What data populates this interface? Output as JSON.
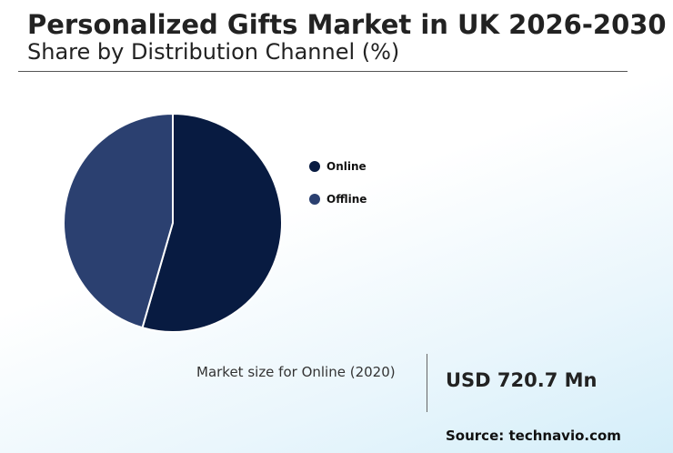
{
  "header": {
    "title": "Personalized Gifts Market in UK 2026-2030",
    "subtitle": "Share by Distribution Channel (%)"
  },
  "chart_data": {
    "type": "pie",
    "title": "Personalized Gifts Market in UK 2026-2030",
    "subtitle": "Share by Distribution Channel (%)",
    "categories": [
      "Online",
      "Offline"
    ],
    "values": [
      54.5,
      45.5
    ],
    "colors": [
      "#081b41",
      "#2b4070"
    ],
    "legend_position": "right"
  },
  "footer": {
    "market_label": "Market size for Online (2020)",
    "market_value": "USD 720.7 Mn",
    "source": "Source: technavio.com"
  }
}
